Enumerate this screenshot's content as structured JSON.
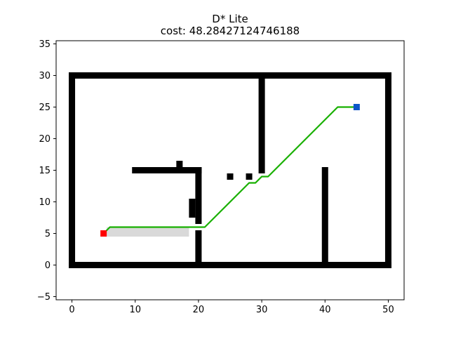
{
  "chart_data": {
    "type": "scatter",
    "title": "D* Lite",
    "subtitle": "cost: 48.28427124746188",
    "xlabel": "",
    "ylabel": "",
    "xlim": [
      -2.5,
      52.5
    ],
    "ylim": [
      -5.5,
      35.5
    ],
    "xticks": [
      0,
      10,
      20,
      30,
      40,
      50
    ],
    "yticks": [
      -5,
      0,
      5,
      10,
      15,
      20,
      25,
      30,
      35
    ],
    "grid": false,
    "colors": {
      "obstacle": "#000000",
      "explored": "#d9d9d9",
      "path": "#18b000",
      "start": "#ff0000",
      "goal": "#0b56c8"
    },
    "obstacle_segments": [
      {
        "from": [
          0,
          0
        ],
        "to": [
          50,
          0
        ]
      },
      {
        "from": [
          0,
          30
        ],
        "to": [
          50,
          30
        ]
      },
      {
        "from": [
          0,
          0
        ],
        "to": [
          0,
          9
        ]
      },
      {
        "from": [
          0,
          10
        ],
        "to": [
          0,
          30
        ]
      },
      {
        "from": [
          50,
          0
        ],
        "to": [
          50,
          9
        ]
      },
      {
        "from": [
          50,
          10
        ],
        "to": [
          50,
          30
        ]
      },
      {
        "from": [
          10,
          15
        ],
        "to": [
          20,
          15
        ]
      },
      {
        "from": [
          20,
          7
        ],
        "to": [
          20,
          15
        ]
      },
      {
        "from": [
          20,
          0
        ],
        "to": [
          20,
          5
        ]
      },
      {
        "from": [
          19,
          8
        ],
        "to": [
          19,
          10
        ]
      },
      {
        "from": [
          30,
          15
        ],
        "to": [
          30,
          30
        ]
      },
      {
        "from": [
          40,
          0
        ],
        "to": [
          40,
          9
        ]
      },
      {
        "from": [
          40,
          10
        ],
        "to": [
          40,
          15
        ]
      }
    ],
    "obstacle_points": [
      [
        17,
        16
      ],
      [
        25,
        14
      ],
      [
        28,
        14
      ]
    ],
    "explored_region": {
      "x": [
        5.5,
        18.5
      ],
      "y": [
        4.5,
        6.0
      ]
    },
    "path": [
      [
        5,
        5
      ],
      [
        6,
        6
      ],
      [
        21,
        6
      ],
      [
        28,
        13
      ],
      [
        29,
        13
      ],
      [
        30,
        14
      ],
      [
        31,
        14
      ],
      [
        42,
        25
      ],
      [
        45,
        25
      ]
    ],
    "start": [
      5,
      5
    ],
    "goal": [
      45,
      25
    ]
  }
}
